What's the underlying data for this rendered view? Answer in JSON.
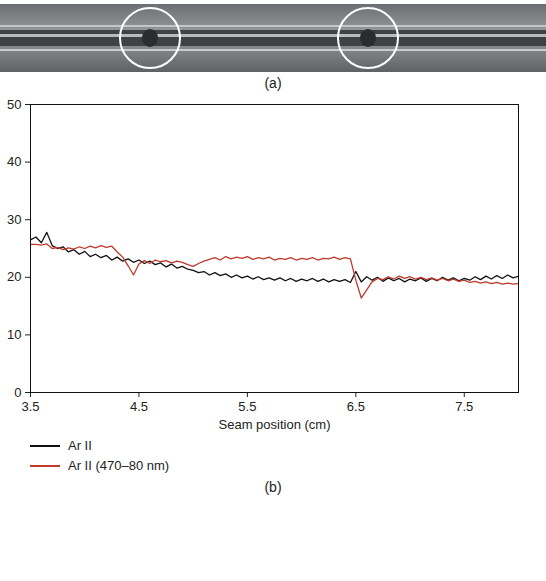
{
  "figure_a": {
    "label": "(a)"
  },
  "chart_data": {
    "type": "line",
    "caption": "(b)",
    "xlabel": "Seam position (cm)",
    "xlim": [
      3.5,
      8.0
    ],
    "xticks": [
      3.5,
      4.5,
      5.5,
      6.5,
      7.5
    ],
    "ylim": [
      0,
      50
    ],
    "yticks": [
      0,
      10,
      20,
      30,
      40,
      50
    ],
    "grid": false,
    "legend": "bottom",
    "x": [
      3.5,
      3.55,
      3.6,
      3.65,
      3.7,
      3.75,
      3.8,
      3.85,
      3.9,
      3.95,
      4.0,
      4.05,
      4.1,
      4.15,
      4.2,
      4.25,
      4.3,
      4.35,
      4.4,
      4.45,
      4.5,
      4.55,
      4.6,
      4.65,
      4.7,
      4.75,
      4.8,
      4.85,
      4.9,
      4.95,
      5.0,
      5.05,
      5.1,
      5.15,
      5.2,
      5.25,
      5.3,
      5.35,
      5.4,
      5.45,
      5.5,
      5.55,
      5.6,
      5.65,
      5.7,
      5.75,
      5.8,
      5.85,
      5.9,
      5.95,
      6.0,
      6.05,
      6.1,
      6.15,
      6.2,
      6.25,
      6.3,
      6.35,
      6.4,
      6.45,
      6.5,
      6.55,
      6.6,
      6.65,
      6.7,
      6.75,
      6.8,
      6.85,
      6.9,
      6.95,
      7.0,
      7.05,
      7.1,
      7.15,
      7.2,
      7.25,
      7.3,
      7.35,
      7.4,
      7.45,
      7.5,
      7.55,
      7.6,
      7.65,
      7.7,
      7.75,
      7.8,
      7.85,
      7.9,
      7.95,
      8.0
    ],
    "series": [
      {
        "name": "Ar II",
        "color": "#111111",
        "line_style": "solid",
        "values": [
          26.5,
          27.0,
          26.0,
          27.8,
          25.5,
          25.0,
          25.3,
          24.4,
          24.8,
          24.0,
          24.5,
          23.6,
          24.0,
          23.4,
          23.8,
          23.0,
          23.5,
          22.8,
          23.2,
          22.6,
          23.0,
          22.4,
          22.8,
          22.2,
          22.5,
          21.8,
          22.3,
          21.6,
          21.9,
          21.4,
          21.2,
          20.8,
          21.0,
          20.4,
          20.8,
          20.3,
          20.6,
          20.0,
          20.4,
          19.9,
          20.2,
          19.7,
          20.1,
          19.6,
          19.9,
          19.5,
          19.9,
          19.4,
          19.8,
          19.3,
          19.7,
          19.4,
          19.8,
          19.3,
          19.7,
          19.2,
          19.6,
          19.3,
          19.6,
          19.1,
          21.0,
          19.2,
          20.1,
          19.5,
          20.0,
          19.3,
          19.9,
          19.4,
          19.8,
          19.2,
          19.7,
          19.4,
          19.9,
          19.3,
          19.8,
          19.4,
          20.0,
          19.5,
          19.9,
          19.4,
          19.8,
          19.5,
          20.1,
          19.6,
          20.2,
          19.7,
          20.3,
          19.8,
          20.4,
          19.9,
          20.2
        ]
      },
      {
        "name": "Ar II (470–80 nm)",
        "color": "#c0392b",
        "line_style": "solid",
        "values": [
          25.7,
          25.7,
          25.6,
          25.8,
          25.0,
          25.2,
          24.8,
          25.1,
          24.9,
          25.3,
          25.0,
          25.4,
          25.1,
          25.5,
          25.2,
          25.4,
          24.4,
          23.5,
          22.0,
          20.4,
          22.3,
          22.9,
          22.4,
          23.0,
          22.7,
          22.9,
          22.5,
          22.8,
          22.6,
          22.2,
          21.9,
          22.4,
          22.8,
          23.1,
          23.4,
          23.0,
          23.6,
          23.2,
          23.5,
          23.3,
          23.6,
          23.1,
          23.4,
          23.2,
          23.5,
          23.0,
          23.3,
          23.1,
          23.4,
          23.0,
          23.3,
          23.1,
          23.4,
          23.0,
          23.3,
          23.2,
          23.5,
          23.1,
          23.4,
          23.2,
          19.5,
          16.4,
          17.8,
          19.2,
          19.8,
          19.6,
          20.1,
          19.7,
          20.2,
          19.8,
          20.1,
          19.7,
          20.0,
          19.6,
          19.9,
          19.5,
          19.8,
          19.4,
          19.7,
          19.3,
          19.5,
          19.1,
          19.3,
          19.0,
          19.2,
          18.9,
          19.1,
          18.8,
          19.0,
          18.8,
          18.9
        ]
      }
    ]
  }
}
